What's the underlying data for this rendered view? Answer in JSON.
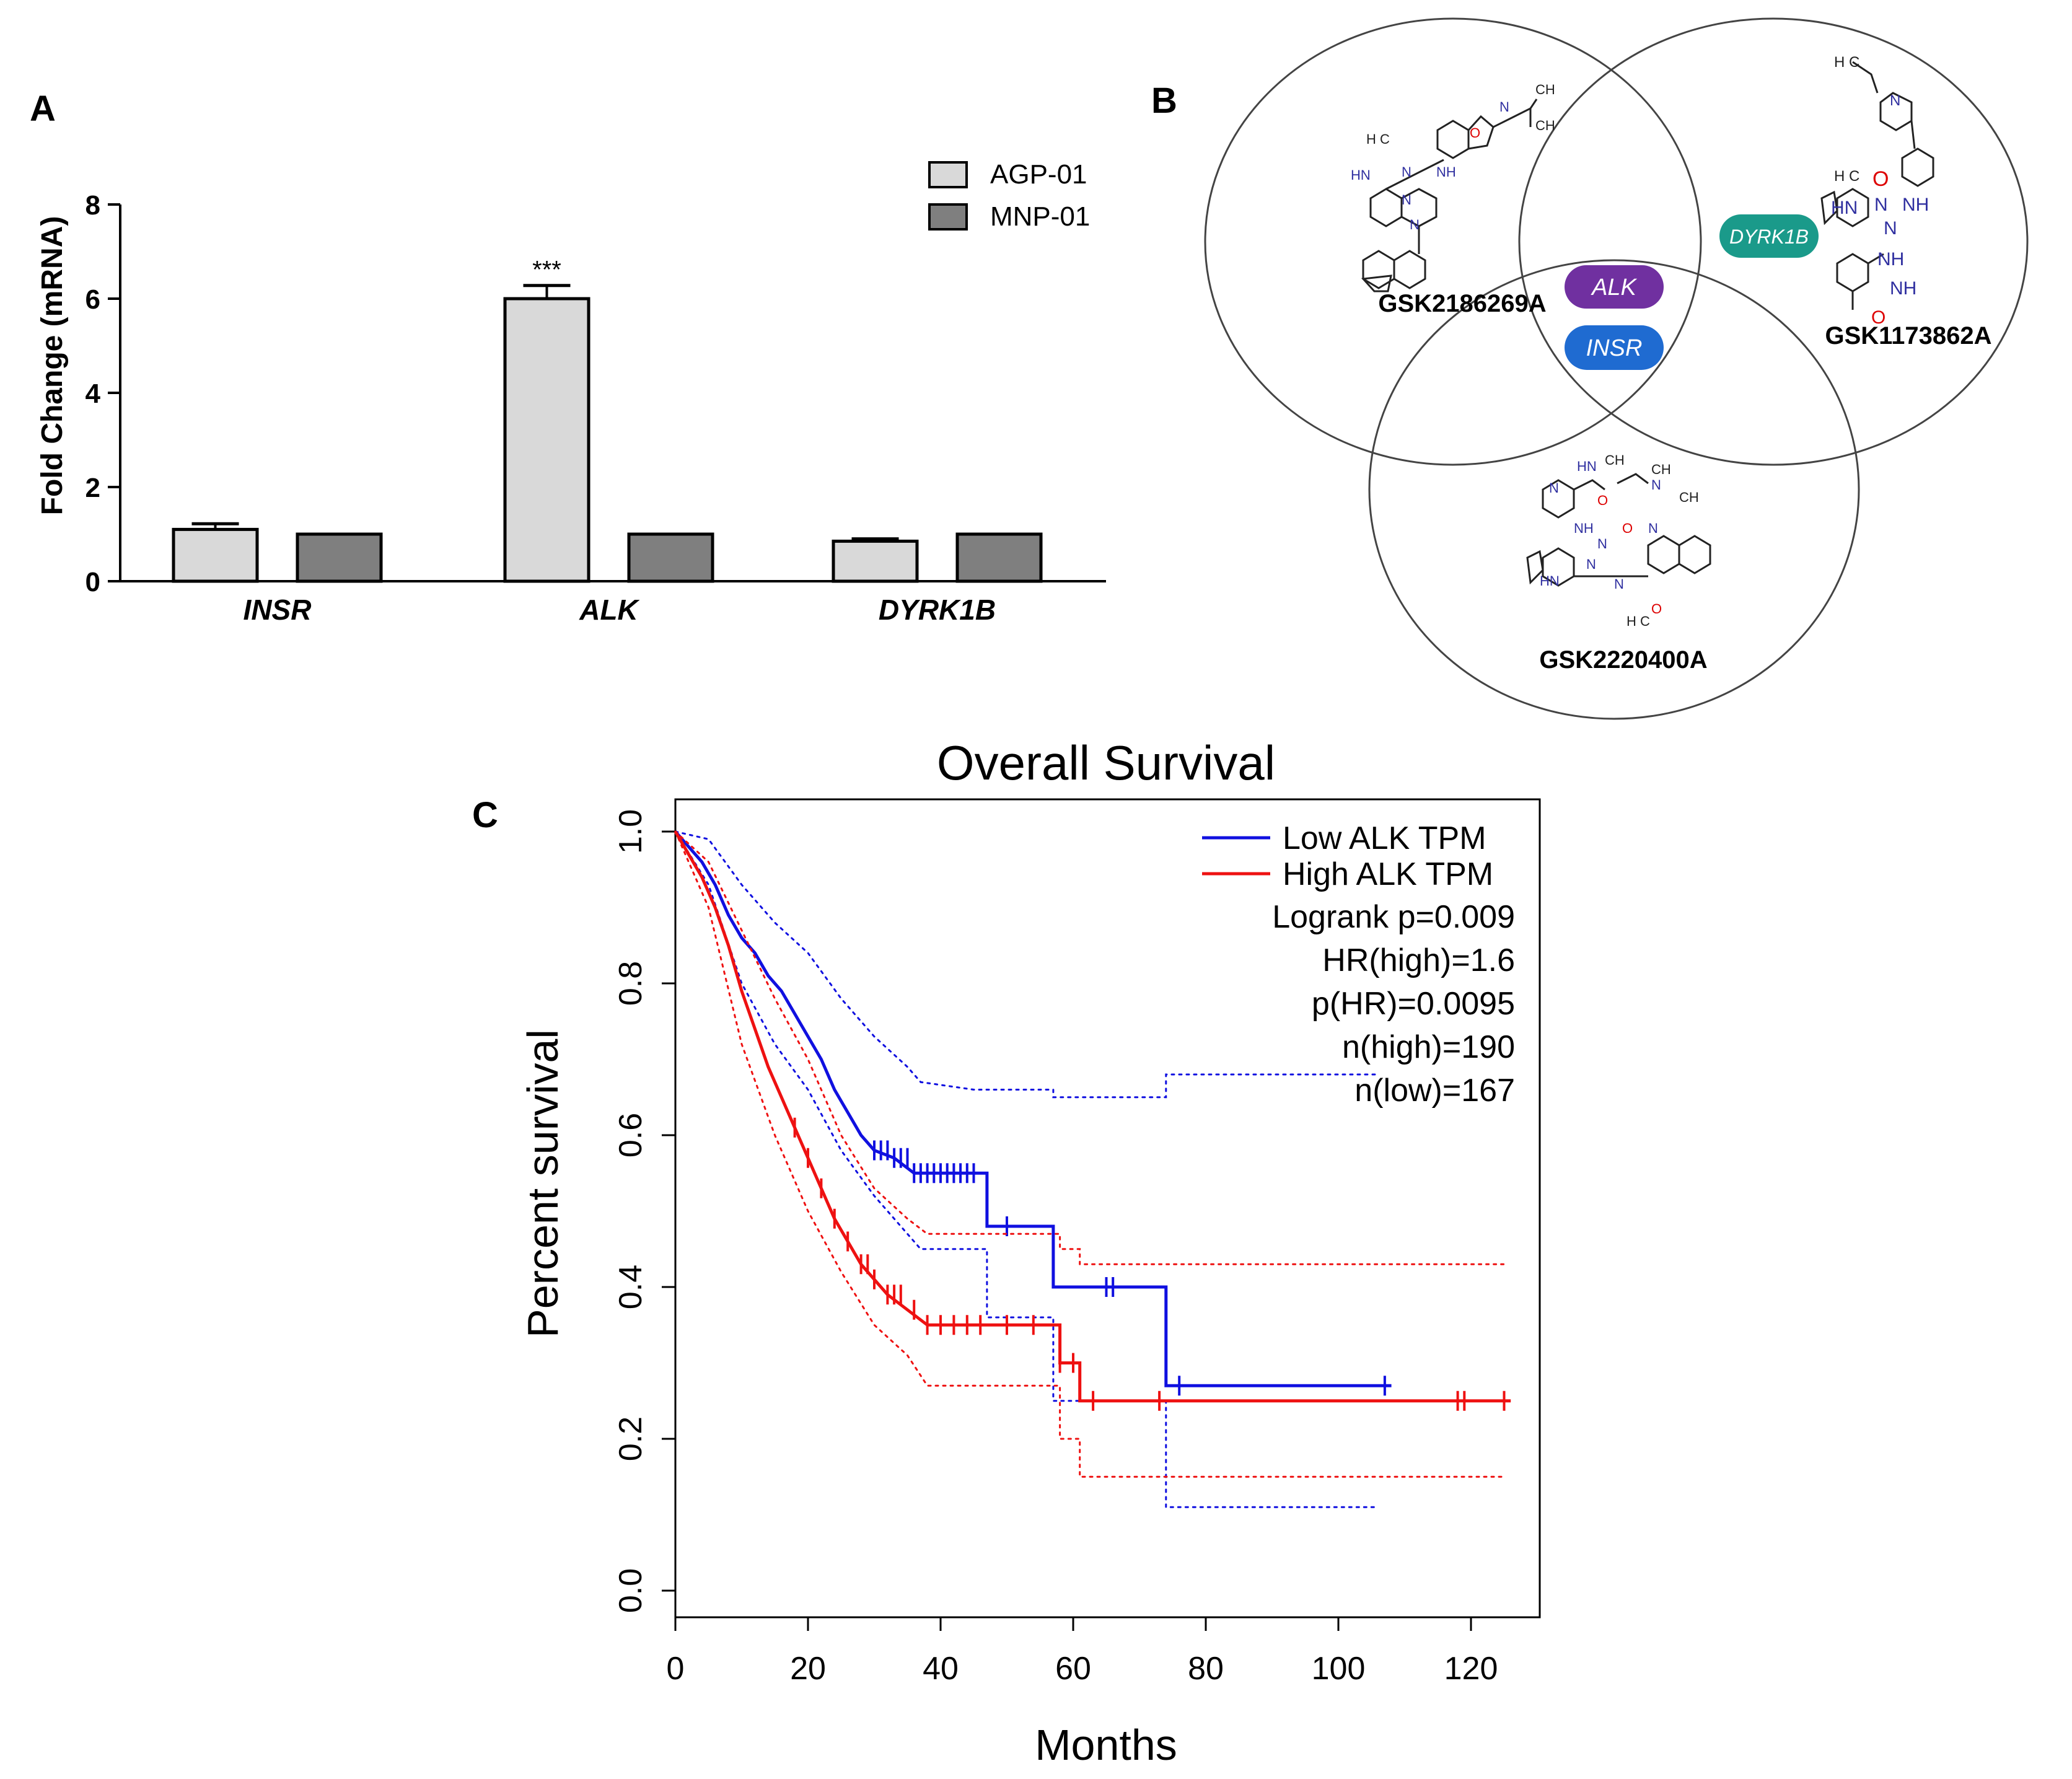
{
  "panels": {
    "A": {
      "letter": "A",
      "chart_data": {
        "type": "bar",
        "title": "",
        "xlabel": "",
        "ylabel": "Fold Change (mRNA)",
        "ylim": [
          0,
          8
        ],
        "yticks": [
          0,
          2,
          4,
          6,
          8
        ],
        "categories": [
          "INSR",
          "ALK",
          "DYRK1B"
        ],
        "series": [
          {
            "name": "AGP-01",
            "values": [
              1.1,
              6.0,
              0.85
            ],
            "errors": [
              0.12,
              0.28,
              0.05
            ],
            "color": "#d9d9d9"
          },
          {
            "name": "MNP-01",
            "values": [
              1.0,
              1.0,
              1.0
            ],
            "errors": [
              0,
              0,
              0
            ],
            "color": "#7f7f7f"
          }
        ],
        "annotations": [
          {
            "category": "ALK",
            "series": "AGP-01",
            "text": "***"
          }
        ]
      }
    },
    "B": {
      "letter": "B",
      "compounds": [
        "GSK2186269A",
        "GSK1173862A",
        "GSK2220400A"
      ],
      "targets": [
        {
          "label": "ALK",
          "color": "#7030a0"
        },
        {
          "label": "INSR",
          "color": "#1f6bd1"
        },
        {
          "label": "DYRK1B",
          "color": "#1a9a8a"
        }
      ],
      "atoms": {
        "c1": {
          "hc": "H C",
          "ch": "CH",
          "ch2": "CH",
          "n": "N",
          "o": "O",
          "hn": "HN",
          "n2": "N",
          "nh": "NH",
          "n3": "N",
          "n4": "N"
        },
        "c2": {
          "hc": "H C",
          "n": "N",
          "hc2": "H C",
          "o": "O",
          "hn": "HN",
          "n2": "N",
          "nh": "NH",
          "n3": "N",
          "nh2": "NH",
          "nh3": "NH",
          "o2": "O"
        },
        "c3": {
          "hn": "HN",
          "ch": "CH",
          "ch2": "CH",
          "n": "N",
          "ch3": "CH",
          "n2": "N",
          "o": "O",
          "nh": "NH",
          "n3": "N",
          "o2": "O",
          "n4": "N",
          "hn2": "HN",
          "n5": "N",
          "n6": "N",
          "hc": "H C",
          "o3": "O"
        }
      }
    },
    "C": {
      "letter": "C",
      "chart_data": {
        "type": "line",
        "title": "Overall Survival",
        "xlabel": "Months",
        "ylabel": "Percent survival",
        "xlim": [
          0,
          130
        ],
        "ylim": [
          0,
          1.05
        ],
        "xticks": [
          0,
          20,
          40,
          60,
          80,
          100,
          120
        ],
        "yticks": [
          0.0,
          0.2,
          0.4,
          0.6,
          0.8,
          1.0
        ],
        "legend": "top-right",
        "series": [
          {
            "name": "Low ALK TPM",
            "color": "#1010e0",
            "points": [
              [
                0,
                1.0
              ],
              [
                2,
                0.98
              ],
              [
                4,
                0.96
              ],
              [
                6,
                0.93
              ],
              [
                8,
                0.89
              ],
              [
                10,
                0.86
              ],
              [
                12,
                0.84
              ],
              [
                14,
                0.81
              ],
              [
                16,
                0.79
              ],
              [
                18,
                0.76
              ],
              [
                20,
                0.73
              ],
              [
                22,
                0.7
              ],
              [
                24,
                0.66
              ],
              [
                26,
                0.63
              ],
              [
                28,
                0.6
              ],
              [
                30,
                0.58
              ],
              [
                33,
                0.57
              ],
              [
                36,
                0.55
              ],
              [
                47,
                0.55
              ],
              [
                47,
                0.48
              ],
              [
                57,
                0.48
              ],
              [
                57,
                0.4
              ],
              [
                74,
                0.4
              ],
              [
                74,
                0.27
              ],
              [
                108,
                0.27
              ]
            ],
            "ci_upper": [
              [
                0,
                1.0
              ],
              [
                5,
                0.99
              ],
              [
                10,
                0.93
              ],
              [
                15,
                0.88
              ],
              [
                20,
                0.84
              ],
              [
                25,
                0.78
              ],
              [
                30,
                0.73
              ],
              [
                35,
                0.69
              ],
              [
                37,
                0.67
              ],
              [
                45,
                0.66
              ],
              [
                57,
                0.66
              ],
              [
                57,
                0.65
              ],
              [
                74,
                0.65
              ],
              [
                74,
                0.68
              ],
              [
                106,
                0.68
              ]
            ],
            "ci_lower": [
              [
                0,
                1.0
              ],
              [
                5,
                0.93
              ],
              [
                10,
                0.8
              ],
              [
                15,
                0.72
              ],
              [
                20,
                0.66
              ],
              [
                25,
                0.58
              ],
              [
                30,
                0.52
              ],
              [
                35,
                0.47
              ],
              [
                37,
                0.45
              ],
              [
                47,
                0.45
              ],
              [
                47,
                0.36
              ],
              [
                57,
                0.36
              ],
              [
                57,
                0.25
              ],
              [
                74,
                0.25
              ],
              [
                74,
                0.11
              ],
              [
                106,
                0.11
              ]
            ],
            "censor": [
              30,
              31,
              32,
              33,
              34,
              35,
              36,
              37,
              38,
              39,
              40,
              41,
              42,
              43,
              44,
              45,
              50,
              65,
              66,
              76,
              107
            ]
          },
          {
            "name": "High ALK TPM",
            "color": "#ee1111",
            "points": [
              [
                0,
                1.0
              ],
              [
                2,
                0.97
              ],
              [
                4,
                0.94
              ],
              [
                6,
                0.9
              ],
              [
                8,
                0.85
              ],
              [
                10,
                0.79
              ],
              [
                12,
                0.74
              ],
              [
                14,
                0.69
              ],
              [
                16,
                0.65
              ],
              [
                18,
                0.61
              ],
              [
                20,
                0.57
              ],
              [
                22,
                0.53
              ],
              [
                24,
                0.49
              ],
              [
                26,
                0.46
              ],
              [
                28,
                0.43
              ],
              [
                30,
                0.41
              ],
              [
                32,
                0.39
              ],
              [
                35,
                0.37
              ],
              [
                38,
                0.35
              ],
              [
                58,
                0.35
              ],
              [
                58,
                0.3
              ],
              [
                61,
                0.3
              ],
              [
                61,
                0.25
              ],
              [
                126,
                0.25
              ]
            ],
            "ci_upper": [
              [
                0,
                1.0
              ],
              [
                5,
                0.96
              ],
              [
                10,
                0.87
              ],
              [
                15,
                0.78
              ],
              [
                20,
                0.7
              ],
              [
                25,
                0.6
              ],
              [
                30,
                0.53
              ],
              [
                35,
                0.49
              ],
              [
                38,
                0.47
              ],
              [
                58,
                0.47
              ],
              [
                58,
                0.45
              ],
              [
                61,
                0.45
              ],
              [
                61,
                0.43
              ],
              [
                125,
                0.43
              ]
            ],
            "ci_lower": [
              [
                0,
                1.0
              ],
              [
                5,
                0.9
              ],
              [
                10,
                0.72
              ],
              [
                15,
                0.6
              ],
              [
                20,
                0.5
              ],
              [
                25,
                0.42
              ],
              [
                30,
                0.35
              ],
              [
                35,
                0.31
              ],
              [
                38,
                0.27
              ],
              [
                58,
                0.27
              ],
              [
                58,
                0.2
              ],
              [
                61,
                0.2
              ],
              [
                61,
                0.15
              ],
              [
                125,
                0.15
              ]
            ],
            "censor": [
              18,
              20,
              22,
              24,
              26,
              28,
              29,
              30,
              32,
              33,
              34,
              36,
              38,
              40,
              42,
              44,
              46,
              50,
              54,
              58,
              60,
              63,
              73,
              118,
              119,
              125
            ]
          }
        ],
        "annotations": [
          "Logrank p=0.009",
          "HR(high)=1.6",
          "p(HR)=0.0095",
          "n(high)=190",
          "n(low)=167"
        ]
      }
    }
  }
}
